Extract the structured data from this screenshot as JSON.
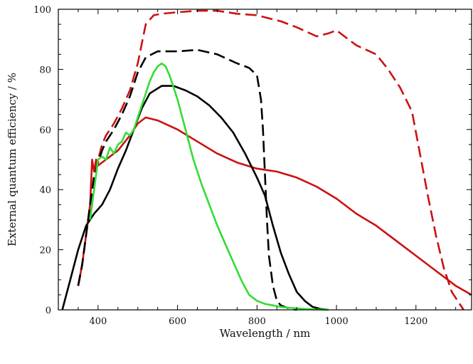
{
  "chart_data": {
    "type": "line",
    "xlabel": "Wavelength / nm",
    "ylabel": "External quantum efficiency / %",
    "xlim": [
      300,
      1340
    ],
    "ylim": [
      0,
      100
    ],
    "xticks": [
      400,
      600,
      800,
      1000,
      1200
    ],
    "yticks": [
      0,
      20,
      40,
      60,
      80,
      100
    ],
    "grid": false,
    "series": [
      {
        "color": "#cc1111",
        "style": "dashed",
        "x": [
          350,
          360,
          370,
          380,
          390,
          400,
          410,
          420,
          440,
          460,
          480,
          500,
          520,
          540,
          560,
          600,
          650,
          700,
          750,
          800,
          830,
          860,
          900,
          950,
          980,
          1000,
          1020,
          1050,
          1100,
          1130,
          1160,
          1190,
          1210,
          1230,
          1250,
          1270,
          1290,
          1310,
          1320
        ],
        "y": [
          8,
          15,
          25,
          35,
          45,
          50,
          55,
          58,
          62,
          67,
          73,
          82,
          95,
          98,
          98.5,
          99,
          99.5,
          99.5,
          98.5,
          98,
          97,
          96,
          94,
          91,
          92,
          93,
          91,
          88,
          85,
          80,
          74,
          66,
          52,
          38,
          25,
          14,
          6,
          2,
          0
        ]
      },
      {
        "color": "#cc1111",
        "style": "solid",
        "x": [
          350,
          360,
          370,
          380,
          385,
          390,
          395,
          400,
          420,
          450,
          480,
          500,
          520,
          550,
          600,
          650,
          700,
          750,
          800,
          850,
          900,
          950,
          1000,
          1050,
          1100,
          1150,
          1200,
          1250,
          1300,
          1340
        ],
        "y": [
          8,
          15,
          25,
          35,
          50,
          46,
          50,
          48,
          50,
          53,
          58,
          62,
          64,
          63,
          60,
          56,
          52,
          49,
          47,
          46,
          44,
          41,
          37,
          32,
          28,
          23,
          18,
          13,
          8,
          5
        ]
      },
      {
        "color": "#000000",
        "style": "dashed",
        "x": [
          350,
          360,
          370,
          380,
          390,
          400,
          410,
          420,
          440,
          460,
          480,
          500,
          520,
          550,
          600,
          650,
          700,
          750,
          780,
          800,
          810,
          815,
          820,
          825,
          830,
          840,
          850,
          860,
          880,
          900
        ],
        "y": [
          8,
          15,
          25,
          35,
          44,
          49,
          53,
          56,
          60,
          65,
          71,
          79,
          84,
          86,
          86,
          86.5,
          85,
          82,
          80.5,
          78,
          70,
          60,
          45,
          30,
          18,
          8,
          3,
          1.5,
          0.5,
          0
        ]
      },
      {
        "color": "#000000",
        "style": "solid",
        "x": [
          310,
          330,
          350,
          370,
          390,
          410,
          430,
          450,
          470,
          490,
          510,
          530,
          560,
          590,
          620,
          650,
          680,
          710,
          740,
          770,
          800,
          820,
          840,
          860,
          880,
          900,
          920,
          940,
          960,
          980
        ],
        "y": [
          0,
          10,
          20,
          28,
          32,
          35,
          40,
          47,
          53,
          60,
          67,
          72,
          74.5,
          74.5,
          73,
          71,
          68,
          64,
          59,
          52,
          44,
          38,
          28,
          19,
          12,
          6,
          3,
          1,
          0.3,
          0
        ]
      },
      {
        "color": "#33dd33",
        "style": "solid",
        "x": [
          380,
          390,
          400,
          410,
          420,
          430,
          440,
          450,
          460,
          470,
          480,
          490,
          500,
          510,
          520,
          530,
          540,
          550,
          560,
          570,
          580,
          600,
          620,
          640,
          660,
          680,
          700,
          720,
          740,
          760,
          780,
          800,
          820,
          840,
          860,
          880,
          900,
          920,
          940,
          960,
          980
        ],
        "y": [
          30,
          40,
          50,
          51,
          50,
          54,
          52,
          55,
          56,
          59,
          58,
          60,
          64,
          68,
          72,
          76,
          79,
          81,
          82,
          81,
          78,
          70,
          60,
          50,
          42,
          35,
          28,
          22,
          16,
          10,
          5,
          3,
          2,
          1.5,
          1,
          0.7,
          0.5,
          0.3,
          0.2,
          0.1,
          0
        ]
      }
    ]
  }
}
